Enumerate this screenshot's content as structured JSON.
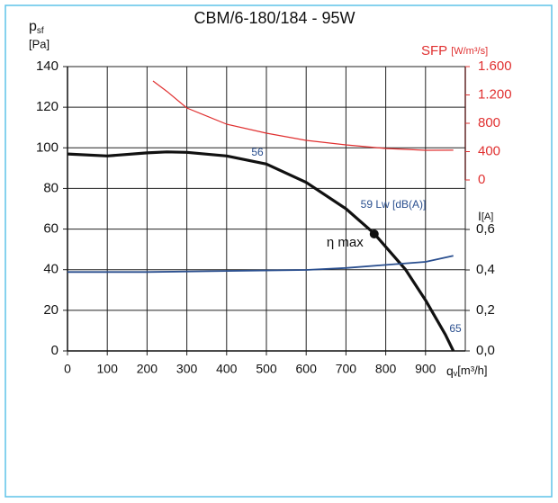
{
  "chart_data": {
    "type": "line",
    "title": "CBM/6-180/184 - 95W",
    "ylabel": {
      "symbol": "p",
      "sub": "sf",
      "unit": "[Pa]"
    },
    "xlabel": {
      "symbol": "q",
      "sub": "v",
      "unit": "[m³/h]"
    },
    "y2label": {
      "name": "SFP",
      "unit": "[W/m³/s]"
    },
    "y3label": {
      "name": "I",
      "unit": "[A]"
    },
    "xlim": [
      0,
      1000
    ],
    "xticks": [
      0,
      100,
      200,
      300,
      400,
      500,
      600,
      700,
      800,
      900
    ],
    "ylim": [
      0,
      140
    ],
    "yticks": [
      0,
      20,
      40,
      60,
      80,
      100,
      120,
      140
    ],
    "y2lim": [
      0,
      1600
    ],
    "y2ticks": [
      0,
      400,
      800,
      {
        "value": 1200,
        "label": "1.200"
      },
      {
        "value": 1600,
        "label": "1.600"
      }
    ],
    "y3lim": [
      0,
      0.6
    ],
    "y3ticks": [
      {
        "value": 0,
        "label": "0,0"
      },
      {
        "value": 0.2,
        "label": "0,2"
      },
      {
        "value": 0.4,
        "label": "0,4"
      },
      {
        "value": 0.6,
        "label": "0,6"
      }
    ],
    "grid": true,
    "series": [
      {
        "name": "pressure",
        "color": "#111111",
        "axis": "y",
        "x": [
          0,
          100,
          200,
          250,
          300,
          400,
          500,
          600,
          700,
          770,
          850,
          900,
          950,
          970
        ],
        "values": [
          97,
          96,
          97.5,
          98,
          97.8,
          96,
          92,
          83,
          70,
          58,
          40,
          25,
          8,
          0
        ]
      },
      {
        "name": "SFP",
        "color": "#e03030",
        "axis": "y2",
        "x": [
          215,
          250,
          300,
          400,
          500,
          600,
          700,
          800,
          900,
          970
        ],
        "values": [
          1397,
          1250,
          1016,
          787,
          660,
          559,
          495,
          444,
          419,
          420
        ]
      },
      {
        "name": "current",
        "color": "#2a4f8f",
        "axis": "y3",
        "x": [
          0,
          200,
          400,
          600,
          700,
          800,
          900,
          970
        ],
        "values": [
          0.39,
          0.39,
          0.395,
          0.4,
          0.41,
          0.425,
          0.44,
          0.47
        ]
      }
    ],
    "eta_max": {
      "label": "η max",
      "x": 771,
      "y": 57.6
    },
    "annotations": [
      "56",
      "59 Lw [dB(A)]",
      "65"
    ]
  }
}
